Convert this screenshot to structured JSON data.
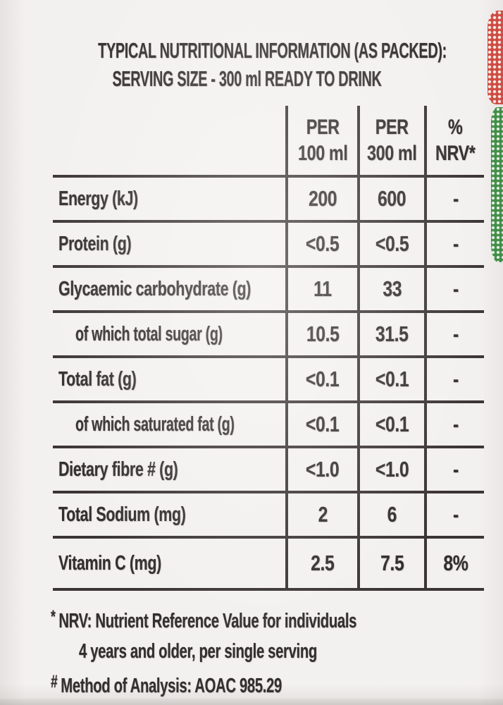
{
  "title": {
    "line1": "TYPICAL NUTRITIONAL INFORMATION (AS PACKED):",
    "line2": "SERVING SIZE - 300 ml READY TO DRINK"
  },
  "table": {
    "columns": [
      {
        "line1": "PER",
        "line2": "100 ml"
      },
      {
        "line1": "PER",
        "line2": "300 ml"
      },
      {
        "line1": "%",
        "line2": "NRV*"
      }
    ],
    "rows": [
      {
        "label": "Energy (kJ)",
        "per_100ml": "200",
        "per_300ml": "600",
        "nrv": "-"
      },
      {
        "label": "Protein (g)",
        "per_100ml": "<0.5",
        "per_300ml": "<0.5",
        "nrv": "-"
      },
      {
        "label": "Glycaemic carbohydrate (g)",
        "per_100ml": "11",
        "per_300ml": "33",
        "nrv": "-"
      },
      {
        "label": "of which total sugar (g)",
        "per_100ml": "10.5",
        "per_300ml": "31.5",
        "nrv": "-"
      },
      {
        "label": "Total fat (g)",
        "per_100ml": "<0.1",
        "per_300ml": "<0.1",
        "nrv": "-"
      },
      {
        "label": "of which saturated fat (g)",
        "per_100ml": "<0.1",
        "per_300ml": "<0.1",
        "nrv": "-"
      },
      {
        "label": "Dietary fibre # (g)",
        "per_100ml": "<1.0",
        "per_300ml": "<1.0",
        "nrv": "-"
      },
      {
        "label": "Total Sodium (mg)",
        "per_100ml": "2",
        "per_300ml": "6",
        "nrv": "-"
      },
      {
        "label": "Vitamin C (mg)",
        "per_100ml": "2.5",
        "per_300ml": "7.5",
        "nrv": "8%"
      }
    ]
  },
  "footnotes": {
    "nrv_marker": "*",
    "nrv_line1": "NRV: Nutrient Reference Value for individuals",
    "nrv_line2": "4 years and older, per single serving",
    "analysis_marker": "#",
    "analysis_text": "Method of Analysis: AOAC 985.29"
  },
  "colors": {
    "paper_background": "#f3f1ef",
    "ink": "#332e2f",
    "table_lines": "#3b3534",
    "artwork_red_halftone": "#d44a40",
    "artwork_green_halftone": "#3f9146"
  }
}
